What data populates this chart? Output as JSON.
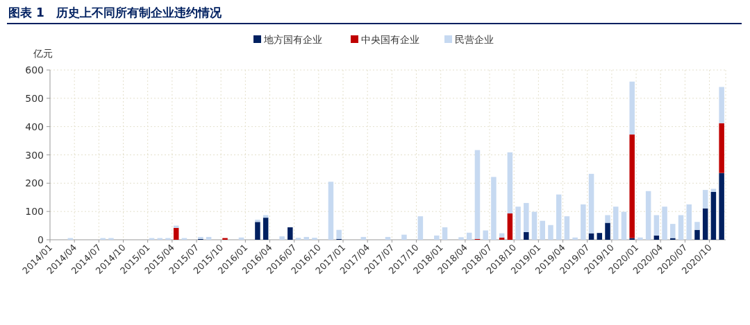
{
  "chart_data": {
    "type": "bar",
    "stacked": true,
    "title": "图表 1　历史上不同所有制企业违约情况",
    "ylabel": "亿元",
    "categories": [
      "2014/01",
      null,
      null,
      "2014/04",
      null,
      null,
      "2014/07",
      null,
      null,
      "2014/10",
      null,
      null,
      "2015/01",
      null,
      null,
      "2015/04",
      null,
      null,
      "2015/07",
      null,
      null,
      "2015/10",
      null,
      null,
      "2016/01",
      null,
      null,
      "2016/04",
      null,
      null,
      "2016/07",
      null,
      null,
      "2016/10",
      null,
      null,
      "2017/01",
      null,
      null,
      "2017/04",
      null,
      null,
      "2017/07",
      null,
      null,
      "2017/10",
      null,
      null,
      "2018/01",
      null,
      null,
      "2018/04",
      null,
      null,
      "2018/07",
      null,
      null,
      "2018/10",
      null,
      null,
      "2019/01",
      null,
      null,
      "2019/04",
      null,
      null,
      "2019/07",
      null,
      null,
      "2019/10",
      null,
      null,
      "2020/01",
      null,
      null,
      "2020/04",
      null,
      null,
      "2020/07",
      null,
      null,
      "2020/10",
      null
    ],
    "series": [
      {
        "name": "地方国有企业",
        "color": "#002060",
        "values": [
          null,
          null,
          null,
          null,
          null,
          null,
          null,
          null,
          null,
          null,
          null,
          null,
          null,
          null,
          null,
          null,
          null,
          null,
          3,
          null,
          null,
          null,
          null,
          null,
          null,
          63,
          78,
          null,
          null,
          44,
          null,
          null,
          null,
          null,
          null,
          3,
          null,
          null,
          null,
          null,
          null,
          null,
          null,
          null,
          null,
          null,
          null,
          null,
          null,
          null,
          null,
          null,
          null,
          null,
          null,
          null,
          null,
          null,
          27,
          null,
          null,
          null,
          null,
          null,
          null,
          null,
          23,
          24,
          60,
          null,
          null,
          6,
          null,
          null,
          15,
          null,
          6,
          null,
          null,
          35,
          111,
          169,
          236
        ]
      },
      {
        "name": "中央国有企业",
        "color": "#c00000",
        "values": [
          null,
          null,
          null,
          null,
          null,
          null,
          null,
          null,
          null,
          null,
          null,
          null,
          null,
          null,
          null,
          42,
          null,
          null,
          null,
          null,
          null,
          6,
          null,
          null,
          null,
          null,
          null,
          null,
          null,
          null,
          null,
          null,
          null,
          null,
          null,
          null,
          null,
          null,
          null,
          null,
          null,
          null,
          null,
          null,
          null,
          null,
          null,
          null,
          null,
          null,
          null,
          null,
          3,
          null,
          null,
          8,
          93,
          null,
          null,
          null,
          null,
          null,
          null,
          null,
          null,
          null,
          null,
          null,
          null,
          null,
          null,
          366,
          null,
          null,
          null,
          null,
          null,
          null,
          null,
          null,
          null,
          null,
          176
        ]
      },
      {
        "name": "民营企业",
        "color": "#c6d9f1",
        "values": [
          null,
          null,
          6,
          null,
          null,
          null,
          6,
          6,
          null,
          null,
          null,
          null,
          6,
          6,
          6,
          8,
          6,
          null,
          7,
          10,
          null,
          null,
          null,
          8,
          null,
          8,
          9,
          null,
          12,
          null,
          7,
          10,
          7,
          null,
          205,
          32,
          null,
          null,
          10,
          null,
          null,
          10,
          null,
          18,
          null,
          83,
          null,
          15,
          44,
          null,
          9,
          25,
          314,
          33,
          222,
          15,
          216,
          117,
          103,
          99,
          67,
          52,
          160,
          83,
          8,
          125,
          210,
          null,
          27,
          117,
          99,
          187,
          8,
          172,
          72,
          117,
          50,
          87,
          125,
          28,
          65,
          11,
          128
        ]
      }
    ],
    "ylim": [
      0,
      600
    ],
    "yticks": [
      0,
      100,
      200,
      300,
      400,
      500,
      600
    ],
    "grid": true,
    "legend": "top"
  }
}
